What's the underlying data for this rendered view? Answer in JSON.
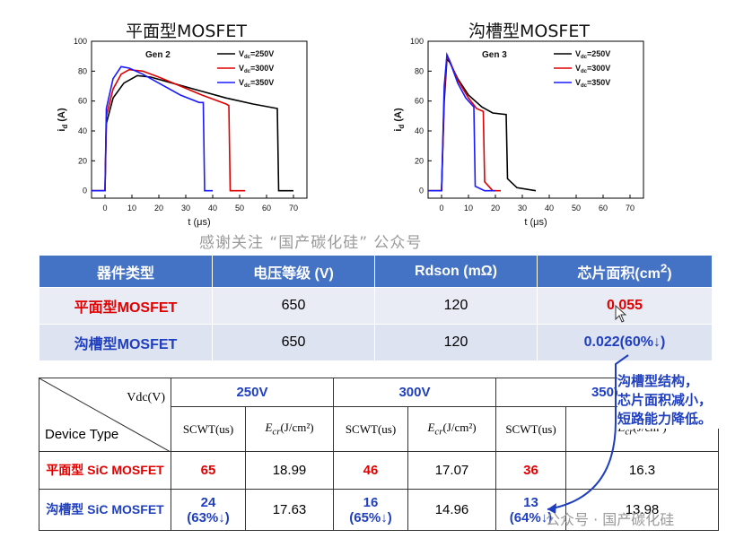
{
  "charts": {
    "left_title": "平面型MOSFET",
    "right_title": "沟槽型MOSFET",
    "left_gen": "Gen 2",
    "right_gen": "Gen 3",
    "xlabel": "t (μs)",
    "ylabel": "i",
    "ylabel_sub": "d",
    "ylabel_unit": " (A)",
    "legend_v": "V",
    "legend_sub": "dc",
    "legend_vals": [
      "=250V",
      "=300V",
      "=350V"
    ],
    "series_colors": [
      "#000000",
      "#e00000",
      "#1a1aff"
    ],
    "left_x_ticks": [
      "0",
      "10",
      "20",
      "30",
      "40",
      "50",
      "60",
      "70"
    ],
    "right_x_ticks": [
      "0",
      "10",
      "20",
      "30",
      "40",
      "50",
      "60",
      "70"
    ],
    "y_ticks": [
      "0",
      "20",
      "40",
      "60",
      "80",
      "100"
    ]
  },
  "chart_data": [
    {
      "type": "line",
      "title": "平面型MOSFET",
      "xlabel": "t (μs)",
      "ylabel": "id (A)",
      "xlim": [
        -5,
        75
      ],
      "ylim": [
        -5,
        100
      ],
      "annotation": "Gen 2",
      "series": [
        {
          "name": "Vdc=250V",
          "color": "#000000",
          "points": [
            [
              -5,
              0
            ],
            [
              0,
              0
            ],
            [
              0.5,
              45
            ],
            [
              3,
              62
            ],
            [
              7,
              72
            ],
            [
              12,
              77
            ],
            [
              17,
              76
            ],
            [
              25,
              72
            ],
            [
              35,
              67
            ],
            [
              45,
              62
            ],
            [
              55,
              58
            ],
            [
              64,
              55
            ],
            [
              64.5,
              0
            ],
            [
              70,
              0
            ]
          ]
        },
        {
          "name": "Vdc=300V",
          "color": "#e00000",
          "points": [
            [
              -5,
              0
            ],
            [
              0,
              0
            ],
            [
              0.5,
              50
            ],
            [
              3,
              68
            ],
            [
              6,
              78
            ],
            [
              9,
              81
            ],
            [
              14,
              80
            ],
            [
              20,
              76
            ],
            [
              28,
              70
            ],
            [
              36,
              64
            ],
            [
              45,
              58
            ],
            [
              46,
              57
            ],
            [
              46.5,
              0
            ],
            [
              52,
              0
            ]
          ]
        },
        {
          "name": "Vdc=350V",
          "color": "#1a1aff",
          "points": [
            [
              -5,
              0
            ],
            [
              0,
              0
            ],
            [
              0.5,
              55
            ],
            [
              3,
              75
            ],
            [
              6,
              83
            ],
            [
              9,
              82
            ],
            [
              14,
              78
            ],
            [
              20,
              72
            ],
            [
              28,
              64
            ],
            [
              35,
              59
            ],
            [
              36.5,
              59
            ],
            [
              37,
              0
            ],
            [
              40,
              0
            ]
          ]
        }
      ]
    },
    {
      "type": "line",
      "title": "沟槽型MOSFET",
      "xlabel": "t (μs)",
      "ylabel": "id (A)",
      "xlim": [
        -5,
        75
      ],
      "ylim": [
        -5,
        100
      ],
      "annotation": "Gen 3",
      "series": [
        {
          "name": "Vdc=250V",
          "color": "#000000",
          "points": [
            [
              -5,
              0
            ],
            [
              0,
              0
            ],
            [
              1,
              60
            ],
            [
              2,
              88
            ],
            [
              3,
              86
            ],
            [
              6,
              75
            ],
            [
              10,
              64
            ],
            [
              15,
              56
            ],
            [
              19,
              52
            ],
            [
              24,
              51
            ],
            [
              24.5,
              8
            ],
            [
              28,
              2
            ],
            [
              35,
              0
            ]
          ]
        },
        {
          "name": "Vdc=300V",
          "color": "#e00000",
          "points": [
            [
              -5,
              0
            ],
            [
              0,
              0
            ],
            [
              1,
              65
            ],
            [
              2,
              90
            ],
            [
              3,
              87
            ],
            [
              6,
              74
            ],
            [
              10,
              62
            ],
            [
              13,
              55
            ],
            [
              15.5,
              53
            ],
            [
              16,
              6
            ],
            [
              19,
              0
            ],
            [
              22,
              0
            ]
          ]
        },
        {
          "name": "Vdc=350V",
          "color": "#1a1aff",
          "points": [
            [
              -5,
              0
            ],
            [
              0,
              0
            ],
            [
              1,
              70
            ],
            [
              2,
              91
            ],
            [
              3,
              87
            ],
            [
              6,
              72
            ],
            [
              9,
              62
            ],
            [
              12,
              56
            ],
            [
              12.5,
              3
            ],
            [
              16,
              0
            ],
            [
              20,
              0
            ]
          ]
        }
      ]
    }
  ],
  "watermark": "感谢关注 “国产碳化硅” 公众号",
  "spec_table": {
    "headers": [
      "器件类型",
      "电压等级 (V)",
      "Rdson (mΩ)",
      "芯片面积(cm²)"
    ],
    "rows": [
      {
        "type": "平面型MOSFET",
        "voltage": "650",
        "rdson": "120",
        "area": "0.055"
      },
      {
        "type": "沟槽型MOSFET",
        "voltage": "650",
        "rdson": "120",
        "area": "0.022(60%↓)"
      }
    ]
  },
  "sc_table": {
    "corner_top": "Vdc(V)",
    "corner_bottom": "Device Type",
    "voltages": [
      "250V",
      "300V",
      "350V"
    ],
    "sub_scwt": "SCWT(us)",
    "sub_e": "E",
    "sub_e_sub": "cr",
    "sub_e_unit": "(J/cm²)",
    "rows": [
      {
        "device": "平面型 SiC MOSFET",
        "vals": [
          {
            "scwt": "65",
            "note": "",
            "e": "18.99"
          },
          {
            "scwt": "46",
            "note": "",
            "e": "17.07"
          },
          {
            "scwt": "36",
            "note": "",
            "e": "16.3"
          }
        ]
      },
      {
        "device": "沟槽型 SiC MOSFET",
        "vals": [
          {
            "scwt": "24",
            "note": "(63%↓)",
            "e": "17.63"
          },
          {
            "scwt": "16",
            "note": "(65%↓)",
            "e": "14.96"
          },
          {
            "scwt": "13",
            "note": "(64%↓)",
            "e": "13.98"
          }
        ]
      }
    ]
  },
  "callout": [
    "沟槽型结构，",
    "芯片面积减小，",
    "短路能力降低。"
  ],
  "watermark_bottom": "公众号 · 国产碳化硅"
}
